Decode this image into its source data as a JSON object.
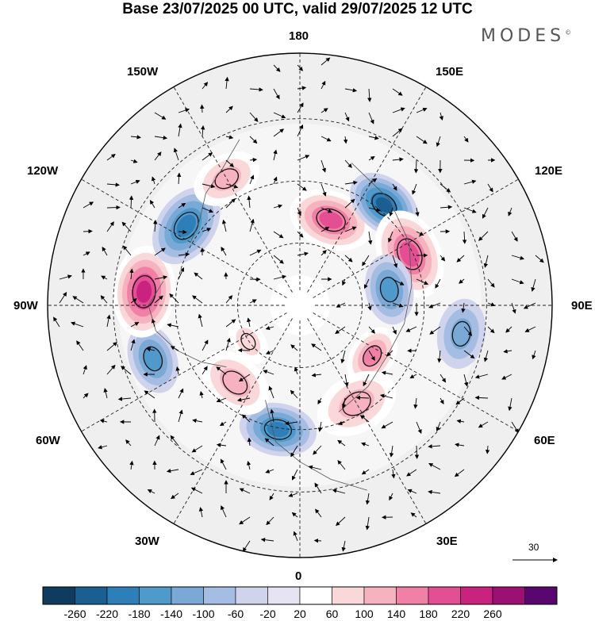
{
  "title": "Base 23/07/2025 00 UTC, valid 29/07/2025 12 UTC",
  "brand": "MODES",
  "brand_mark": "©",
  "longitude_labels": {
    "top": "180",
    "bottom": "0",
    "left": "90W",
    "right": "90E",
    "upper_left_1": "150W",
    "upper_left_2": "120W",
    "upper_right_1": "150E",
    "upper_right_2": "120E",
    "lower_left_1": "60W",
    "lower_left_2": "30W",
    "lower_right_1": "60E",
    "lower_right_2": "30E"
  },
  "wind_scale_label": "30",
  "colorbar": {
    "labels": [
      "-260",
      "-220",
      "-180",
      "-140",
      "-100",
      "-60",
      "-20",
      "20",
      "60",
      "100",
      "140",
      "180",
      "220",
      "260"
    ],
    "colors": [
      "#0e3b5e",
      "#1b5f92",
      "#2e7fb8",
      "#4f99cb",
      "#7aa9d6",
      "#a6bde3",
      "#cfd3ec",
      "#e6e4f3",
      "#ffffff",
      "#fad7d9",
      "#f6b2be",
      "#f080a6",
      "#e44f93",
      "#c9237f",
      "#9c0f73",
      "#5a0670"
    ]
  },
  "anomalies": [
    {
      "lon": 160,
      "r": 0.36,
      "value": 200,
      "size": 0.12
    },
    {
      "lon": 140,
      "r": 0.52,
      "value": -240,
      "size": 0.11
    },
    {
      "lon": 115,
      "r": 0.48,
      "value": 180,
      "size": 0.13
    },
    {
      "lon": 100,
      "r": 0.36,
      "value": -140,
      "size": 0.1
    },
    {
      "lon": 55,
      "r": 0.35,
      "value": 140,
      "size": 0.09
    },
    {
      "lon": 30,
      "r": 0.45,
      "value": 120,
      "size": 0.12
    },
    {
      "lon": -10,
      "r": 0.5,
      "value": -200,
      "size": 0.11
    },
    {
      "lon": -40,
      "r": 0.4,
      "value": 130,
      "size": 0.11
    },
    {
      "lon": -70,
      "r": 0.62,
      "value": -160,
      "size": 0.1
    },
    {
      "lon": -95,
      "r": 0.62,
      "value": 220,
      "size": 0.13
    },
    {
      "lon": -125,
      "r": 0.55,
      "value": -180,
      "size": 0.12
    },
    {
      "lon": -150,
      "r": 0.58,
      "value": 100,
      "size": 0.1
    },
    {
      "lon": 80,
      "r": 0.65,
      "value": -120,
      "size": 0.1
    },
    {
      "lon": -55,
      "r": 0.25,
      "value": 60,
      "size": 0.07
    }
  ]
}
